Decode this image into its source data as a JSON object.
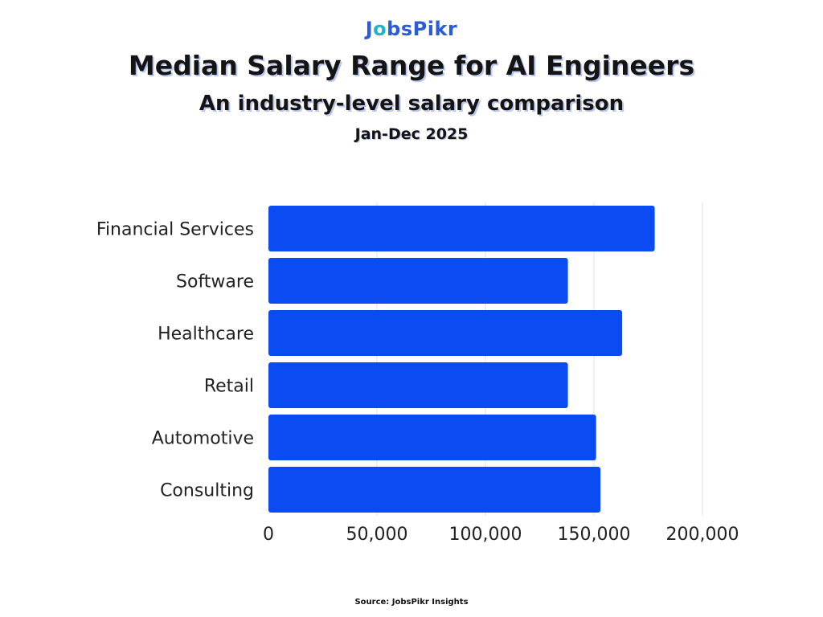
{
  "brand": {
    "logo_part1": "J",
    "logo_part2": "o",
    "logo_part3": "bsPikr"
  },
  "header": {
    "title": "Median Salary Range for AI Engineers",
    "subtitle": "An industry-level salary comparison",
    "period": "Jan-Dec 2025"
  },
  "footer": {
    "source": "Source: JobsPikr Insights"
  },
  "colors": {
    "bar": "#0a4cf2",
    "grid": "#e2e2e2",
    "text": "#222222"
  },
  "chart_data": {
    "type": "bar",
    "orientation": "horizontal",
    "title": "Median Salary Range for AI Engineers",
    "subtitle": "An industry-level salary comparison",
    "categories": [
      "Financial Services",
      "Software",
      "Healthcare",
      "Retail",
      "Automotive",
      "Consulting"
    ],
    "values": [
      178000,
      138000,
      163000,
      138000,
      151000,
      153000
    ],
    "xlim": [
      0,
      200000
    ],
    "xticks": [
      0,
      50000,
      100000,
      150000,
      200000
    ],
    "xtick_labels": [
      "0",
      "50,000",
      "100,000",
      "150,000",
      "200,000"
    ],
    "xlabel": "",
    "ylabel": "",
    "grid": true,
    "legend": "none"
  }
}
